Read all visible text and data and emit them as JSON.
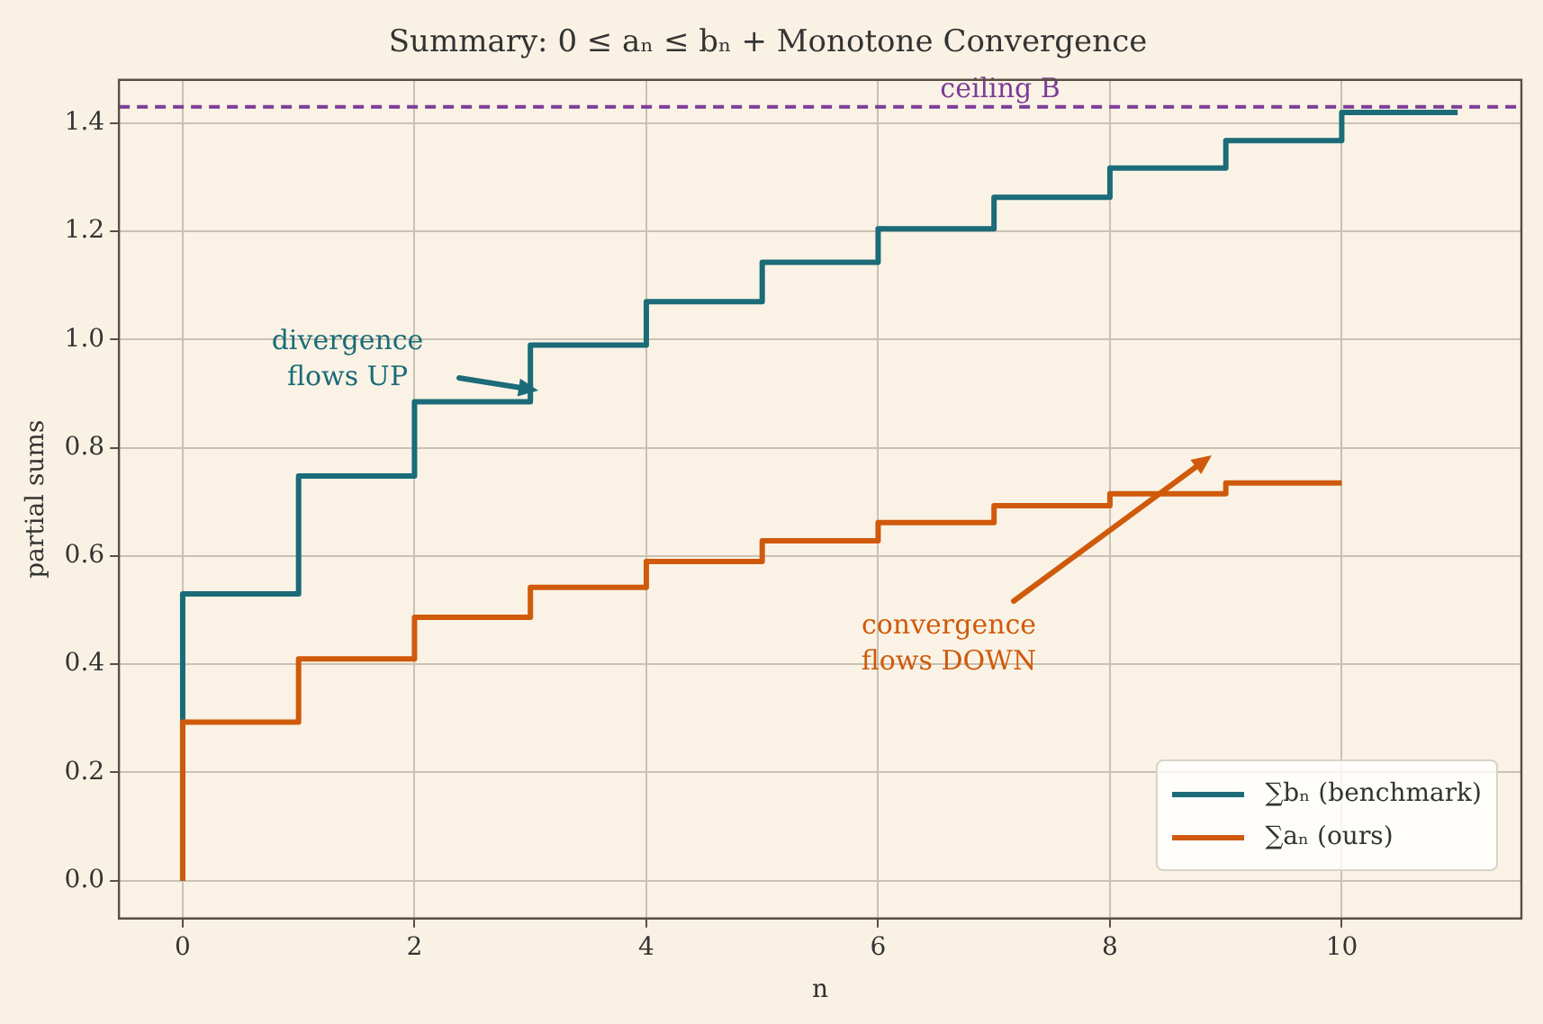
{
  "chart_data": {
    "type": "step",
    "title": "Summary: 0 ≤ aₙ ≤ bₙ + Monotone Convergence",
    "xlabel": "n",
    "ylabel": "partial sums",
    "series": [
      {
        "name": "∑bₙ (benchmark)",
        "color": "#1b6b78",
        "x": [
          0,
          1,
          2,
          3,
          4,
          5,
          6,
          7,
          8,
          9,
          10,
          11
        ],
        "values": [
          0,
          0.53,
          0.748,
          0.885,
          0.99,
          1.07,
          1.143,
          1.205,
          1.263,
          1.317,
          1.368,
          1.42
        ]
      },
      {
        "name": "∑aₙ (ours)",
        "color": "#d05a0c",
        "x": [
          0,
          1,
          2,
          3,
          4,
          5,
          6,
          7,
          8,
          9,
          10
        ],
        "values": [
          0,
          0.293,
          0.41,
          0.487,
          0.542,
          0.59,
          0.628,
          0.662,
          0.693,
          0.715,
          0.735
        ]
      }
    ],
    "xlim": [
      -0.55,
      11.55
    ],
    "ylim": [
      -0.07,
      1.48
    ],
    "xticks": [
      0,
      2,
      4,
      6,
      8,
      10
    ],
    "yticks": [
      {
        "value": 0,
        "label": "0.0"
      },
      0.2,
      0.4,
      0.6,
      0.8,
      {
        "value": 1,
        "label": "1.0"
      },
      1.2,
      1.4
    ],
    "ref_lines": [
      {
        "axis": "y",
        "value": 1.43,
        "label": "ceiling B",
        "color": "#7d3c98",
        "line_style": "dashed"
      }
    ],
    "annotations": [
      "divergence\nflows UP",
      "convergence\nflows DOWN"
    ],
    "grid": true,
    "legend": "bottom right",
    "line_style": "solid",
    "marker": "none"
  }
}
